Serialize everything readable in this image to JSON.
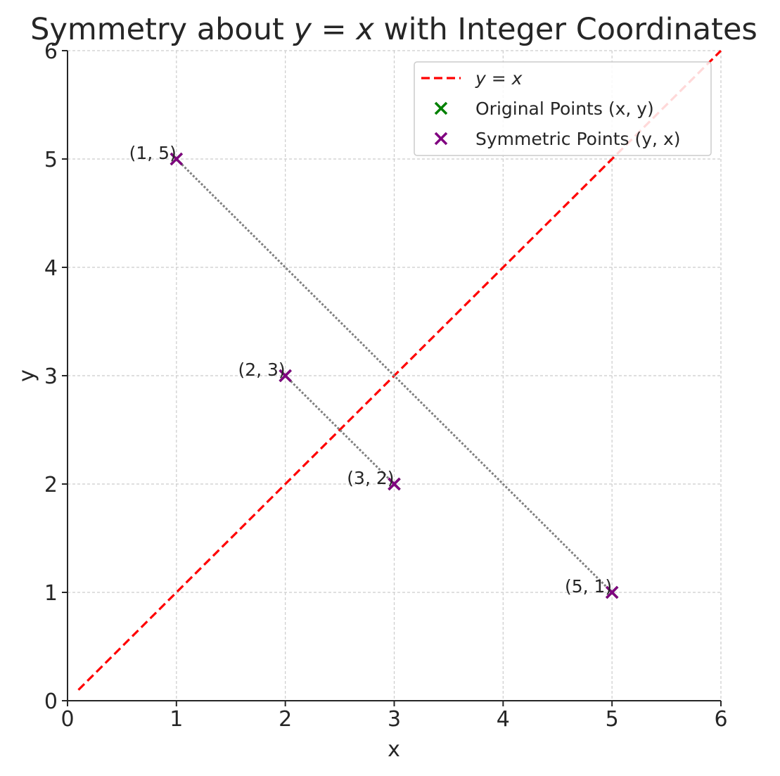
{
  "chart_data": {
    "type": "scatter",
    "title_pre": "Symmetry about ",
    "title_math": "y = x",
    "title_post": " with Integer Coordinates",
    "xlabel": "x",
    "ylabel": "y",
    "xlim": [
      0,
      6
    ],
    "ylim": [
      0,
      6
    ],
    "xticks": [
      0,
      1,
      2,
      3,
      4,
      5,
      6
    ],
    "yticks": [
      0,
      1,
      2,
      3,
      4,
      5,
      6
    ],
    "grid": true,
    "legend_position": "top-right",
    "reference_line": {
      "name": "y = x",
      "x": [
        0.1,
        6.0
      ],
      "y": [
        0.1,
        6.0
      ],
      "color": "#ff0000",
      "style": "dashed"
    },
    "series": [
      {
        "name": "Original Points (x, y)",
        "marker": "x",
        "color": "#008000",
        "points": [
          [
            1,
            5
          ],
          [
            2,
            3
          ],
          [
            3,
            2
          ],
          [
            5,
            1
          ]
        ]
      },
      {
        "name": "Symmetric Points (y, x)",
        "marker": "x",
        "color": "#800080",
        "points": [
          [
            5,
            1
          ],
          [
            3,
            2
          ],
          [
            2,
            3
          ],
          [
            1,
            5
          ]
        ]
      }
    ],
    "connectors": [
      {
        "from": [
          1,
          5
        ],
        "to": [
          5,
          1
        ]
      },
      {
        "from": [
          2,
          3
        ],
        "to": [
          3,
          2
        ]
      }
    ],
    "connector_color": "#808080",
    "point_labels": [
      {
        "x": 1,
        "y": 5,
        "text": "(1, 5)"
      },
      {
        "x": 2,
        "y": 3,
        "text": "(2, 3)"
      },
      {
        "x": 3,
        "y": 2,
        "text": "(3, 2)"
      },
      {
        "x": 5,
        "y": 1,
        "text": "(5, 1)"
      }
    ],
    "legend": [
      {
        "label": "y = x",
        "kind": "line",
        "color": "#ff0000"
      },
      {
        "label": "Original Points (x, y)",
        "kind": "marker",
        "color": "#008000"
      },
      {
        "label": "Symmetric Points (y, x)",
        "kind": "marker",
        "color": "#800080"
      }
    ]
  }
}
